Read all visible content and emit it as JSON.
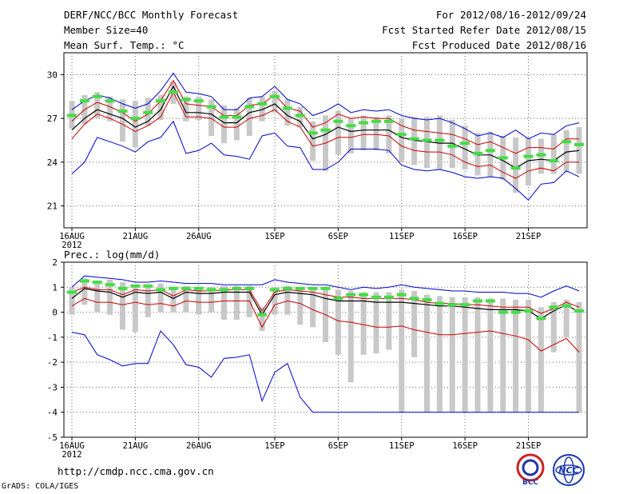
{
  "header": {
    "title": "DERF/NCC/BCC Monthly Forecast",
    "member_size": "Member Size=40",
    "variable": "Mean Surf. Temp.: °C",
    "period": "For 2012/08/16-2012/09/24",
    "start_date": "Fcst Started Refer Date 2012/08/15",
    "produced_date": "Fcst Produced Date 2012/08/16"
  },
  "footer": {
    "url": "http://cmdp.ncc.cma.gov.cn",
    "grads": "GrADS: COLA/IGES",
    "logo_bcc": "BCC",
    "logo_ncc": "NCC"
  },
  "colors": {
    "envelope": "#0000cc",
    "percentile": "#cc0000",
    "median": "#000000",
    "mean_marker": "#44dd44",
    "box": "#c8c8c8",
    "grid": "#666666"
  },
  "chart_data": [
    {
      "type": "line",
      "name": "temperature",
      "title": "Mean Surf. Temp.: °C",
      "ylabel": "°C",
      "ylim": [
        19.5,
        31.5
      ],
      "yticks": [
        21,
        24,
        27,
        30
      ],
      "grid": true,
      "x_ticks": [
        {
          "day": 0,
          "label": "16AUG",
          "sub": "2012"
        },
        {
          "day": 5,
          "label": "21AUG"
        },
        {
          "day": 10,
          "label": "26AUG"
        },
        {
          "day": 16,
          "label": "1SEP"
        },
        {
          "day": 21,
          "label": "6SEP"
        },
        {
          "day": 26,
          "label": "11SEP"
        },
        {
          "day": 31,
          "label": "16SEP"
        },
        {
          "day": 36,
          "label": "21SEP"
        }
      ],
      "series": [
        {
          "name": "max",
          "role": "envelope_hi",
          "values": [
            27.6,
            28.2,
            28.6,
            28.4,
            28.0,
            27.7,
            28.0,
            28.9,
            30.1,
            28.8,
            28.7,
            28.5,
            27.6,
            27.6,
            28.4,
            28.5,
            29.2,
            28.3,
            28.0,
            27.2,
            27.5,
            28.0,
            27.4,
            27.6,
            27.5,
            27.6,
            27.2,
            27.0,
            26.9,
            27.0,
            26.7,
            26.3,
            25.8,
            26.0,
            25.7,
            26.2,
            25.6,
            26.0,
            25.9,
            26.5,
            26.7
          ]
        },
        {
          "name": "p75",
          "role": "percentile",
          "values": [
            26.8,
            27.6,
            28.1,
            27.8,
            27.4,
            26.8,
            27.3,
            28.2,
            29.6,
            28.0,
            27.9,
            27.8,
            27.2,
            27.2,
            27.9,
            28.0,
            28.6,
            27.7,
            27.5,
            26.4,
            26.7,
            27.3,
            27.0,
            27.1,
            27.0,
            27.0,
            26.5,
            26.2,
            26.1,
            26.0,
            25.9,
            25.6,
            25.2,
            25.4,
            25.0,
            24.6,
            25.0,
            25.0,
            24.9,
            25.6,
            25.6
          ]
        },
        {
          "name": "median",
          "role": "median",
          "values": [
            26.2,
            27.0,
            27.6,
            27.3,
            27.0,
            26.4,
            26.8,
            27.6,
            29.2,
            27.4,
            27.4,
            27.3,
            26.7,
            26.7,
            27.4,
            27.6,
            28.0,
            27.2,
            26.8,
            25.6,
            25.9,
            26.4,
            26.1,
            26.2,
            26.2,
            26.2,
            25.7,
            25.5,
            25.4,
            25.3,
            25.3,
            24.9,
            24.5,
            24.5,
            24.1,
            23.6,
            24.1,
            24.2,
            24.1,
            24.7,
            24.8
          ]
        },
        {
          "name": "p25",
          "role": "percentile",
          "values": [
            25.6,
            26.6,
            27.3,
            27.0,
            26.6,
            26.1,
            26.5,
            27.1,
            28.8,
            27.1,
            27.1,
            27.0,
            26.4,
            26.4,
            27.0,
            27.2,
            27.6,
            26.8,
            26.4,
            25.1,
            25.3,
            25.7,
            25.7,
            25.9,
            25.9,
            25.8,
            25.1,
            24.8,
            24.7,
            24.7,
            24.5,
            24.0,
            23.7,
            23.8,
            23.3,
            22.9,
            23.4,
            23.6,
            23.4,
            24.0,
            24.0
          ]
        },
        {
          "name": "min",
          "role": "envelope_lo",
          "values": [
            23.2,
            24.0,
            25.7,
            25.4,
            25.1,
            24.7,
            25.4,
            25.7,
            26.8,
            24.6,
            24.8,
            25.3,
            24.5,
            24.4,
            24.2,
            25.8,
            26.0,
            25.1,
            25.0,
            23.5,
            23.5,
            24.0,
            24.9,
            24.9,
            24.9,
            24.8,
            23.8,
            23.5,
            23.4,
            23.5,
            23.3,
            23.0,
            22.9,
            23.0,
            22.9,
            22.2,
            21.4,
            22.5,
            22.6,
            23.4,
            23.0
          ]
        },
        {
          "name": "mean",
          "role": "marker",
          "values": [
            27.2,
            28.2,
            28.5,
            28.2,
            27.5,
            27.0,
            27.4,
            28.2,
            28.8,
            28.3,
            28.2,
            27.8,
            27.1,
            27.1,
            27.8,
            28.0,
            28.5,
            27.7,
            27.2,
            26.0,
            26.2,
            26.8,
            26.5,
            26.7,
            26.8,
            26.8,
            25.9,
            25.6,
            25.5,
            25.5,
            25.1,
            25.3,
            24.6,
            24.8,
            24.3,
            23.6,
            24.4,
            24.5,
            24.1,
            25.4,
            25.2
          ]
        },
        {
          "name": "box_hi",
          "role": "box_hi",
          "values": [
            28.2,
            28.6,
            28.8,
            28.5,
            28.3,
            28.2,
            28.4,
            28.6,
            29.5,
            28.5,
            28.5,
            28.3,
            27.9,
            27.7,
            28.4,
            28.5,
            28.9,
            28.3,
            27.8,
            26.8,
            27.2,
            27.5,
            27.0,
            27.2,
            27.1,
            27.2,
            27.0,
            27.1,
            27.1,
            27.2,
            26.9,
            26.5,
            26.0,
            26.1,
            25.8,
            25.7,
            25.7,
            25.6,
            25.9,
            26.2,
            26.4
          ]
        },
        {
          "name": "box_lo",
          "role": "box_lo",
          "values": [
            26.3,
            26.6,
            27.0,
            26.8,
            25.4,
            25.0,
            26.5,
            26.9,
            28.0,
            26.8,
            26.9,
            25.8,
            25.3,
            25.5,
            25.8,
            26.8,
            27.4,
            26.5,
            26.4,
            24.1,
            23.4,
            24.5,
            24.6,
            24.8,
            24.8,
            24.6,
            24.0,
            23.8,
            23.6,
            23.5,
            23.6,
            23.5,
            23.1,
            23.0,
            22.8,
            21.9,
            22.4,
            23.2,
            23.2,
            23.3,
            23.2
          ]
        }
      ]
    },
    {
      "type": "line",
      "name": "precipitation",
      "title": "Prec.: log(mm/d)",
      "ylabel": "log(mm/d)",
      "ylim": [
        -5,
        2
      ],
      "yticks": [
        -5,
        -4,
        -3,
        -2,
        -1,
        0,
        1,
        2
      ],
      "grid": true,
      "x_ticks": [
        {
          "day": 0,
          "label": "16AUG",
          "sub": "2012"
        },
        {
          "day": 5,
          "label": "21AUG"
        },
        {
          "day": 10,
          "label": "26AUG"
        },
        {
          "day": 16,
          "label": "1SEP"
        },
        {
          "day": 21,
          "label": "6SEP"
        },
        {
          "day": 26,
          "label": "11SEP"
        },
        {
          "day": 31,
          "label": "16SEP"
        },
        {
          "day": 36,
          "label": "21SEP"
        }
      ],
      "series": [
        {
          "name": "max",
          "role": "envelope_hi",
          "values": [
            1.0,
            1.45,
            1.4,
            1.35,
            1.3,
            1.2,
            1.2,
            1.25,
            1.2,
            1.15,
            1.15,
            1.15,
            1.1,
            1.1,
            1.1,
            1.1,
            1.3,
            1.2,
            1.15,
            1.1,
            1.1,
            1.0,
            0.9,
            1.0,
            0.95,
            1.0,
            1.1,
            1.0,
            0.95,
            0.9,
            0.85,
            0.85,
            0.8,
            0.8,
            0.8,
            0.75,
            0.75,
            0.6,
            0.85,
            1.05,
            0.85
          ]
        },
        {
          "name": "p75",
          "role": "percentile",
          "values": [
            0.8,
            1.0,
            0.9,
            0.9,
            0.7,
            0.9,
            0.85,
            0.9,
            0.65,
            0.9,
            0.85,
            0.85,
            0.9,
            0.9,
            0.9,
            0.05,
            0.8,
            0.9,
            0.85,
            0.8,
            0.7,
            0.6,
            0.6,
            0.55,
            0.55,
            0.55,
            0.55,
            0.5,
            0.4,
            0.35,
            0.35,
            0.3,
            0.3,
            0.25,
            0.2,
            0.2,
            0.2,
            -0.05,
            0.15,
            0.4,
            0.2
          ]
        },
        {
          "name": "median",
          "role": "median",
          "values": [
            0.55,
            0.95,
            0.85,
            0.8,
            0.6,
            0.8,
            0.75,
            0.8,
            0.55,
            0.8,
            0.75,
            0.75,
            0.8,
            0.8,
            0.8,
            -0.1,
            0.7,
            0.8,
            0.75,
            0.7,
            0.55,
            0.45,
            0.45,
            0.45,
            0.4,
            0.4,
            0.4,
            0.35,
            0.3,
            0.25,
            0.25,
            0.2,
            0.15,
            0.1,
            0.1,
            0.1,
            0.05,
            -0.25,
            0.05,
            0.3,
            0.0
          ]
        },
        {
          "name": "p25",
          "role": "percentile",
          "values": [
            0.25,
            0.55,
            0.4,
            0.4,
            0.3,
            0.4,
            0.3,
            0.35,
            0.25,
            0.45,
            0.4,
            0.4,
            0.45,
            0.45,
            0.45,
            -0.6,
            0.3,
            0.45,
            0.35,
            0.1,
            -0.1,
            -0.35,
            -0.4,
            -0.5,
            -0.6,
            -0.6,
            -0.55,
            -0.7,
            -0.8,
            -0.9,
            -0.9,
            -0.85,
            -0.8,
            -0.75,
            -0.85,
            -0.95,
            -1.1,
            -1.55,
            -1.3,
            -1.05,
            -1.6
          ]
        },
        {
          "name": "min",
          "role": "envelope_lo",
          "values": [
            -0.8,
            -0.9,
            -1.7,
            -1.9,
            -2.15,
            -2.05,
            -2.05,
            -0.75,
            -1.3,
            -2.1,
            -2.2,
            -2.6,
            -1.85,
            -1.8,
            -1.7,
            -3.55,
            -2.4,
            -2.05,
            -3.4,
            -4.0,
            -4.0,
            -4.0,
            -4.0,
            -4.0,
            -4.0,
            -4.0,
            -4.0,
            -4.0,
            -4.0,
            -4.0,
            -4.0,
            -4.0,
            -4.0,
            -4.0,
            -4.0,
            -4.0,
            -4.0,
            -4.0,
            -4.0,
            -4.0,
            -4.0
          ]
        },
        {
          "name": "mean",
          "role": "marker",
          "values": [
            0.8,
            1.25,
            1.2,
            1.1,
            0.95,
            1.05,
            1.05,
            0.9,
            0.95,
            0.95,
            0.95,
            0.9,
            0.9,
            0.95,
            0.95,
            -0.1,
            0.9,
            0.95,
            0.95,
            0.95,
            0.95,
            0.55,
            0.7,
            0.7,
            0.6,
            0.6,
            0.7,
            0.55,
            0.5,
            0.35,
            0.3,
            0.3,
            0.45,
            0.45,
            0.0,
            0.0,
            0.05,
            -0.25,
            0.2,
            0.25,
            0.05
          ]
        },
        {
          "name": "box_hi",
          "role": "box_hi",
          "values": [
            1.0,
            1.35,
            1.25,
            1.3,
            1.2,
            1.0,
            1.1,
            1.15,
            0.9,
            1.05,
            1.0,
            1.0,
            1.05,
            1.05,
            1.05,
            0.2,
            1.0,
            1.05,
            1.0,
            1.0,
            1.0,
            0.9,
            0.85,
            0.8,
            0.8,
            0.8,
            0.9,
            0.85,
            0.7,
            0.65,
            0.6,
            0.6,
            0.6,
            0.55,
            0.55,
            0.5,
            0.5,
            0.2,
            0.4,
            0.5,
            0.4
          ]
        },
        {
          "name": "box_lo",
          "role": "box_lo",
          "values": [
            -0.1,
            0.3,
            0.0,
            -0.1,
            -0.7,
            -0.8,
            -0.2,
            0.0,
            0.0,
            0.0,
            -0.1,
            0.0,
            -0.3,
            -0.3,
            -0.2,
            -0.75,
            -0.1,
            -0.1,
            -0.5,
            -0.6,
            -1.2,
            -1.7,
            -2.8,
            -1.7,
            -1.65,
            -1.5,
            -4.0,
            -1.8,
            -4.0,
            -4.0,
            -4.0,
            -4.0,
            -4.0,
            -4.0,
            -4.0,
            -4.0,
            -4.0,
            -4.0,
            -1.6,
            -1.0,
            -4.0
          ]
        }
      ]
    }
  ]
}
